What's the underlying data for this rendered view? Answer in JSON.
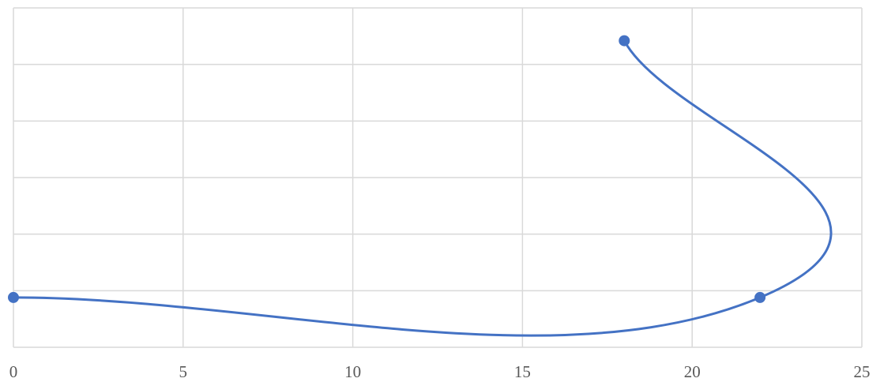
{
  "chart_data": {
    "type": "scatter",
    "smooth": true,
    "markers": true,
    "grid": true,
    "xlim": [
      0,
      25
    ],
    "ylim": [
      0,
      6
    ],
    "x_ticks": [
      0,
      5,
      10,
      15,
      20,
      25
    ],
    "x_tick_labels": [
      "0",
      "5",
      "10",
      "15",
      "20",
      "25"
    ],
    "y_gridlines": [
      0,
      1,
      2,
      3,
      4,
      5,
      6
    ],
    "series": [
      {
        "color": "#4472c4",
        "points": [
          {
            "x": 0,
            "y": 0.88
          },
          {
            "x": 22,
            "y": 0.88
          },
          {
            "x": 18,
            "y": 5.42
          }
        ]
      }
    ]
  }
}
